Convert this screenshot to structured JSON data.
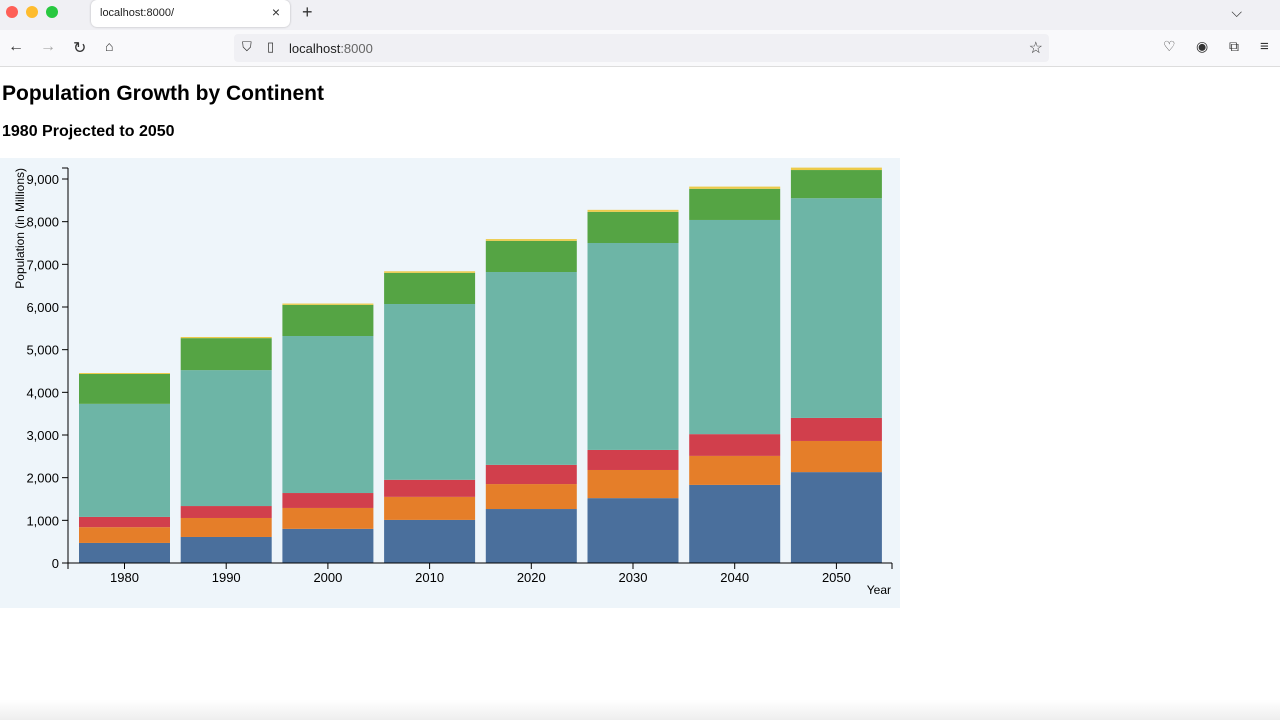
{
  "browser": {
    "tab_title": "localhost:8000/",
    "url_host": "localhost",
    "url_port": ":8000"
  },
  "page": {
    "title": "Population Growth by Continent",
    "subtitle": "1980 Projected to 2050"
  },
  "chart_data": {
    "type": "bar",
    "stacked": true,
    "categories": [
      "1980",
      "1990",
      "2000",
      "2010",
      "2020",
      "2030",
      "2040",
      "2050"
    ],
    "xlabel": "Year",
    "ylabel": "Population (in Millions)",
    "ylim": [
      0,
      9300
    ],
    "yticks": [
      0,
      1000,
      2000,
      3000,
      4000,
      5000,
      6000,
      7000,
      8000,
      9000
    ],
    "ytick_labels": [
      "0",
      "1,000",
      "2,000",
      "3,000",
      "4,000",
      "5,000",
      "6,000",
      "7,000",
      "8,000",
      "9,000"
    ],
    "grid": false,
    "background": "#eef5fa",
    "series": [
      {
        "color": "#4a6f9c",
        "values": [
          470,
          610,
          800,
          1010,
          1265,
          1520,
          1830,
          2130
        ]
      },
      {
        "color": "#e57e29",
        "values": [
          370,
          445,
          490,
          540,
          585,
          660,
          680,
          730
        ]
      },
      {
        "color": "#d13f4c",
        "values": [
          240,
          280,
          350,
          400,
          450,
          470,
          510,
          540
        ]
      },
      {
        "color": "#6db5a6",
        "values": [
          2650,
          3185,
          3680,
          4120,
          4520,
          4850,
          5020,
          5150
        ]
      },
      {
        "color": "#55a444",
        "values": [
          700,
          750,
          730,
          730,
          730,
          730,
          730,
          660
        ]
      },
      {
        "color": "#eccb4a",
        "values": [
          23,
          27,
          31,
          37,
          42,
          47,
          52,
          57
        ]
      }
    ]
  }
}
